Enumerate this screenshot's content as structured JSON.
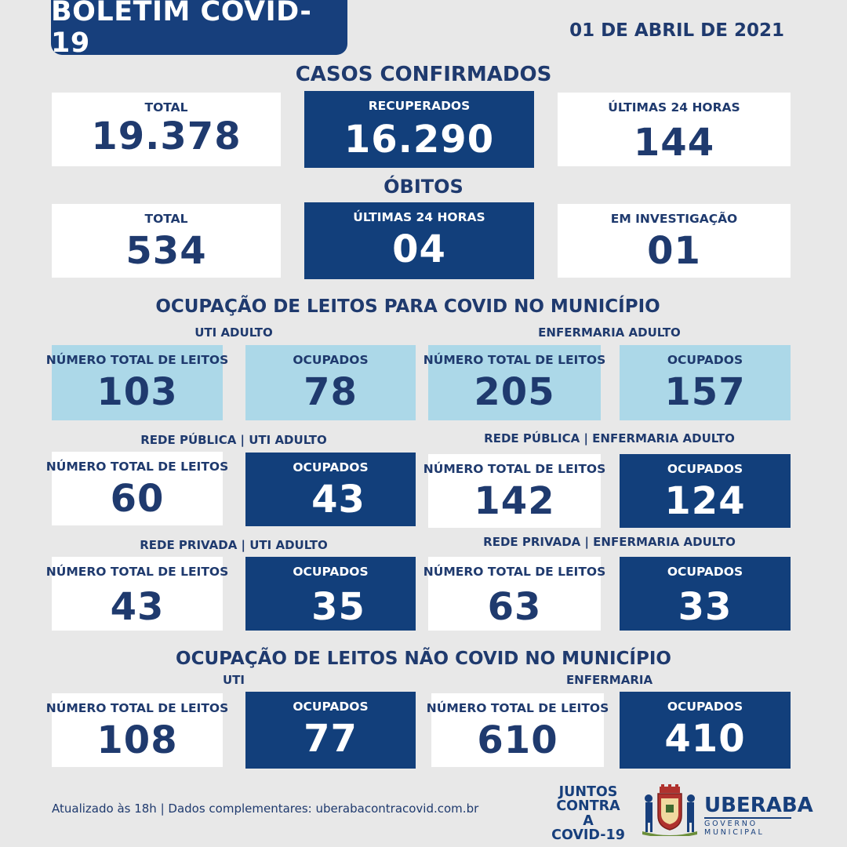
{
  "header": {
    "title": "BOLETIM COVID-19",
    "date": "01 DE ABRIL DE 2021"
  },
  "casos": {
    "title": "CASOS CONFIRMADOS",
    "total_label": "TOTAL",
    "total_value": "19.378",
    "recuperados_label": "RECUPERADOS",
    "recuperados_value": "16.290",
    "ultimas_label": "ÚLTIMAS 24 HORAS",
    "ultimas_value": "144"
  },
  "obitos": {
    "title": "ÓBITOS",
    "total_label": "TOTAL",
    "total_value": "534",
    "ultimas_label": "ÚLTIMAS 24 HORAS",
    "ultimas_value": "04",
    "investigacao_label": "EM INVESTIGAÇÃO",
    "investigacao_value": "01"
  },
  "covid_leitos": {
    "title": "OCUPAÇÃO DE LEITOS PARA COVID NO MUNICÍPIO",
    "uti_label": "UTI ADULTO",
    "enf_label": "ENFERMARIA ADULTO",
    "total_label": "NÚMERO TOTAL DE LEITOS",
    "ocupados_label": "OCUPADOS",
    "uti_total": "103",
    "uti_ocupados": "78",
    "enf_total": "205",
    "enf_ocupados": "157",
    "publica_uti_label": "REDE PÚBLICA | UTI ADULTO",
    "publica_enf_label": "REDE PÚBLICA | ENFERMARIA ADULTO",
    "publica_uti_total": "60",
    "publica_uti_ocupados": "43",
    "publica_enf_total": "142",
    "publica_enf_ocupados": "124",
    "privada_uti_label": "REDE PRIVADA | UTI ADULTO",
    "privada_enf_label": "REDE PRIVADA | ENFERMARIA ADULTO",
    "privada_uti_total": "43",
    "privada_uti_ocupados": "35",
    "privada_enf_total": "63",
    "privada_enf_ocupados": "33"
  },
  "nao_covid": {
    "title": "OCUPAÇÃO DE LEITOS NÃO COVID NO MUNICÍPIO",
    "uti_label": "UTI",
    "enf_label": "ENFERMARIA",
    "total_label": "NÚMERO TOTAL DE LEITOS",
    "ocupados_label": "OCUPADOS",
    "uti_total": "108",
    "uti_ocupados": "77",
    "enf_total": "610",
    "enf_ocupados": "410"
  },
  "footer": {
    "note": "Atualizado às 18h | Dados complementares: uberabacontracovid.com.br",
    "juntos_line1": "JUNTOS",
    "juntos_line2": "CONTRA A",
    "juntos_line3": "COVID-19",
    "city": "UBERABA",
    "gov": "GOVERNO MUNICIPAL"
  },
  "colors": {
    "navy": "#123f7b",
    "light_blue": "#acd8e8",
    "text": "#1f3a6e",
    "background": "#e8e8e8"
  }
}
